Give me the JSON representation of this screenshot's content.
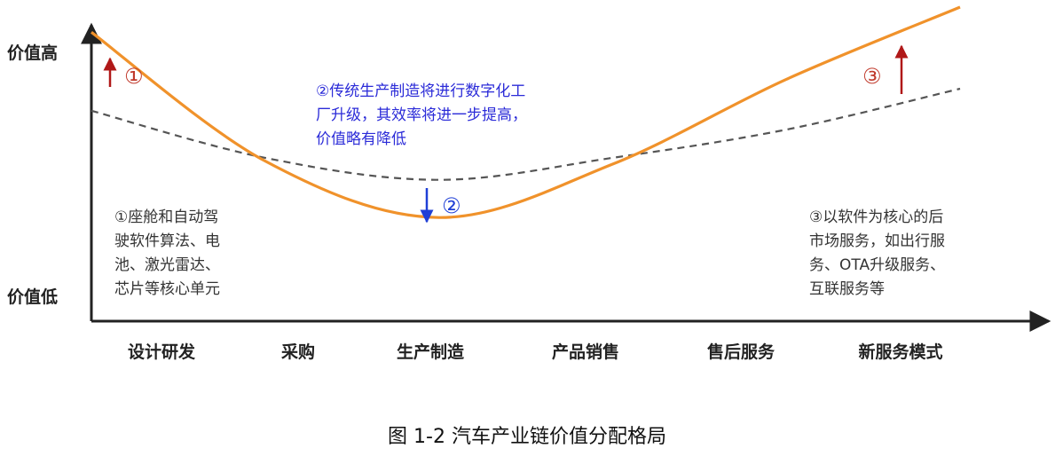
{
  "chart_data": {
    "type": "line",
    "y_axis_labels": {
      "high": "价值高",
      "low": "价值低"
    },
    "categories": [
      "设计研发",
      "采购",
      "生产制造",
      "产品销售",
      "售后服务",
      "新服务模式"
    ],
    "series": [
      {
        "style": "solid",
        "color": "#f0922b",
        "values": [
          0.92,
          0.51,
          0.33,
          0.5,
          0.77,
          1.0
        ]
      },
      {
        "style": "dashed",
        "color": "#555555",
        "values": [
          0.67,
          0.52,
          0.45,
          0.52,
          0.61,
          0.74
        ]
      }
    ],
    "ylim": [
      0,
      1
    ],
    "annotations": [
      {
        "id": "note1",
        "lines": [
          "①座舱和自动驾",
          "驶软件算法、电",
          "池、激光雷达、",
          "芯片等核心单元"
        ]
      },
      {
        "id": "note2",
        "lines": [
          "②传统生产制造将进行数字化工",
          "厂升级，其效率将进一步提高，",
          "价值略有降低"
        ]
      },
      {
        "id": "note3",
        "lines": [
          "③以软件为核心的后",
          "市场服务，如出行服",
          "务、OTA升级服务、",
          "互联服务等"
        ]
      }
    ],
    "markers": [
      "①",
      "②",
      "③"
    ],
    "caption": "图  1-2  汽车产业链价值分配格局"
  },
  "colors": {
    "solid_line": "#f0922b",
    "dashed_line": "#555555",
    "up_arrow": "#b01818",
    "down_arrow": "#1f3fd6",
    "axis": "#222222"
  }
}
